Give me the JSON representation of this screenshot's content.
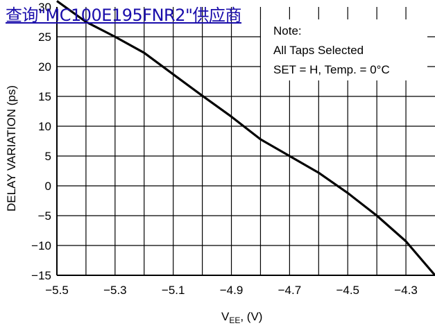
{
  "link": {
    "text": "查询\"MC100E195FNR2\"供应商"
  },
  "note": [
    "Note:",
    "All Taps Selected",
    "SET = H, Temp. = 0°C"
  ],
  "chart_data": {
    "type": "line",
    "x": [
      -5.5,
      -5.4,
      -5.3,
      -5.2,
      -5.1,
      -5.0,
      -4.9,
      -4.8,
      -4.7,
      -4.6,
      -4.5,
      -4.4,
      -4.3,
      -4.2
    ],
    "series": [
      {
        "values": [
          31,
          27.5,
          25,
          22.3,
          18.7,
          15.1,
          11.6,
          7.8,
          5,
          2.2,
          -1.2,
          -5,
          -9.3,
          -15
        ]
      }
    ],
    "xlim": [
      -5.5,
      -4.2
    ],
    "ylim": [
      -15,
      30
    ],
    "xticks": [
      -5.5,
      -5.3,
      -5.1,
      -4.9,
      -4.7,
      -4.5,
      -4.3
    ],
    "xtick_labels": [
      "−5.5",
      "−5.3",
      "−5.1",
      "−4.9",
      "−4.7",
      "−4.5",
      "−4.3"
    ],
    "yticks": [
      -15,
      -10,
      -5,
      0,
      5,
      10,
      15,
      20,
      25,
      30
    ],
    "ytick_labels": [
      "−15",
      "−10",
      "−5",
      "0",
      "5",
      "10",
      "15",
      "20",
      "25",
      "30"
    ],
    "xlabel_main": "V",
    "xlabel_sub": "EE",
    "xlabel_rest": ", (V)",
    "ylabel": "DELAY VARIATION (ps)",
    "grid": true,
    "line_color": "#000000",
    "grid_color": "#000000"
  }
}
